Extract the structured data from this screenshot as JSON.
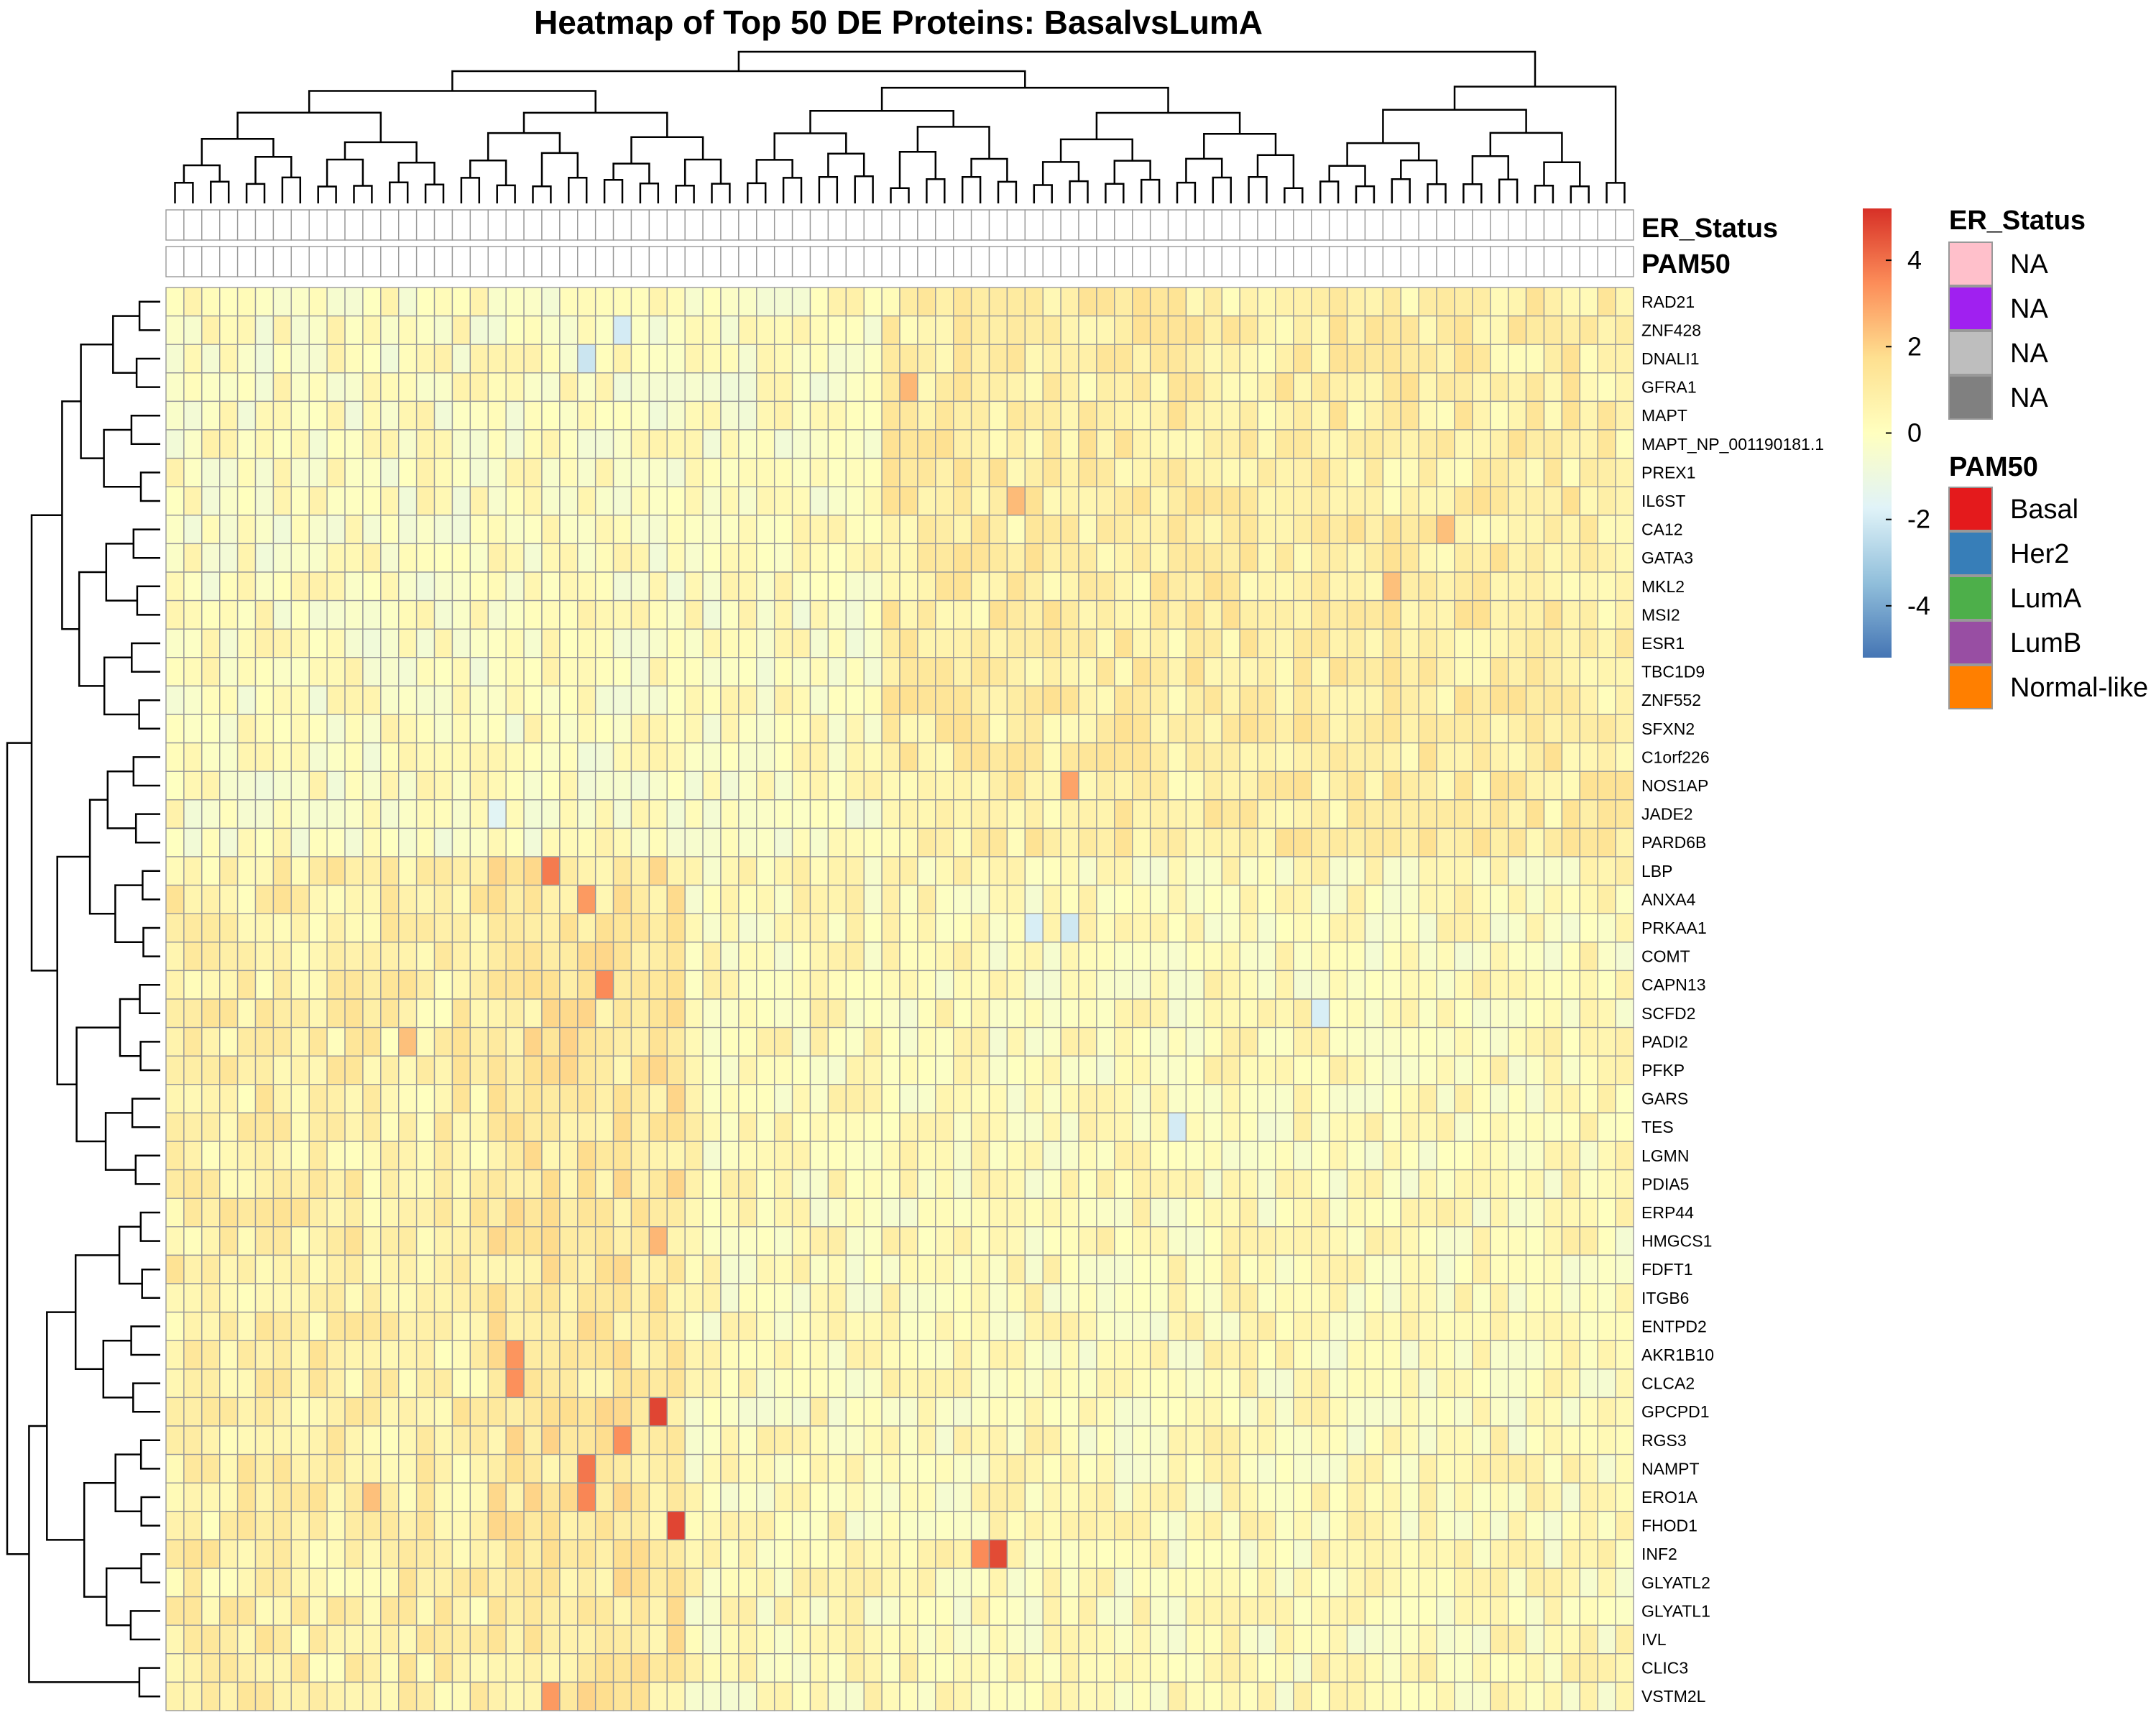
{
  "chart_data": {
    "type": "heatmap",
    "title": "Heatmap of Top 50 DE Proteins: BasalvsLumA",
    "n_columns": 82,
    "rows": [
      "RAD21",
      "ZNF428",
      "DNALI1",
      "GFRA1",
      "MAPT",
      "MAPT_NP_001190181.1",
      "PREX1",
      "IL6ST",
      "CA12",
      "GATA3",
      "MKL2",
      "MSI2",
      "ESR1",
      "TBC1D9",
      "ZNF552",
      "SFXN2",
      "C1orf226",
      "NOS1AP",
      "JADE2",
      "PARD6B",
      "LBP",
      "ANXA4",
      "PRKAA1",
      "COMT",
      "CAPN13",
      "SCFD2",
      "PADI2",
      "PFKP",
      "GARS",
      "TES",
      "LGMN",
      "PDIA5",
      "ERP44",
      "HMGCS1",
      "FDFT1",
      "ITGB6",
      "ENTPD2",
      "AKR1B10",
      "CLCA2",
      "GPCPD1",
      "RGS3",
      "NAMPT",
      "ERO1A",
      "FHOD1",
      "INF2",
      "GLYATL2",
      "GLYATL1",
      "IVL",
      "CLIC3",
      "VSTM2L"
    ],
    "annotation_rows": [
      "ER_Status",
      "PAM50"
    ],
    "color_scale": {
      "colors": [
        "#4575b4",
        "#91bfdb",
        "#e0f3f8",
        "#ffffbf",
        "#fee090",
        "#fc8d59",
        "#d73027"
      ],
      "min": -5.2,
      "max": 5.2,
      "ticks": [
        "4",
        "2",
        "0",
        "-2",
        "-4"
      ]
    },
    "na_color": "#ffffff",
    "grid_color": "#999999",
    "hotspots": [
      {
        "row": "LBP",
        "col": 21,
        "value": 3.8
      },
      {
        "row": "ANXA4",
        "col": 23,
        "value": 3.2
      },
      {
        "row": "CAPN13",
        "col": 24,
        "value": 3.5
      },
      {
        "row": "AKR1B10",
        "col": 19,
        "value": 3.3
      },
      {
        "row": "CLCA2",
        "col": 19,
        "value": 3.4
      },
      {
        "row": "GPCPD1",
        "col": 27,
        "value": 4.8
      },
      {
        "row": "RGS3",
        "col": 25,
        "value": 3.4
      },
      {
        "row": "NAMPT",
        "col": 23,
        "value": 3.9
      },
      {
        "row": "ERO1A",
        "col": 23,
        "value": 3.6
      },
      {
        "row": "FHOD1",
        "col": 28,
        "value": 4.8
      },
      {
        "row": "INF2",
        "col": 46,
        "value": 4.7
      },
      {
        "row": "INF2",
        "col": 45,
        "value": 3.5
      },
      {
        "row": "VSTM2L",
        "col": 21,
        "value": 3.2
      },
      {
        "row": "NOS1AP",
        "col": 50,
        "value": 3.0
      },
      {
        "row": "GFRA1",
        "col": 41,
        "value": 2.6
      },
      {
        "row": "IL6ST",
        "col": 47,
        "value": 2.5
      },
      {
        "row": "CA12",
        "col": 71,
        "value": 2.4
      },
      {
        "row": "MKL2",
        "col": 68,
        "value": 2.4
      },
      {
        "row": "HMGCS1",
        "col": 27,
        "value": 2.6
      },
      {
        "row": "PADI2",
        "col": 13,
        "value": 2.4
      },
      {
        "row": "ERO1A",
        "col": 11,
        "value": 2.4
      },
      {
        "row": "ZNF428",
        "col": 25,
        "value": -2.0
      },
      {
        "row": "DNALI1",
        "col": 23,
        "value": -2.2
      },
      {
        "row": "PRKAA1",
        "col": 50,
        "value": -2.1
      },
      {
        "row": "PRKAA1",
        "col": 48,
        "value": -1.9
      },
      {
        "row": "TES",
        "col": 56,
        "value": -2.0
      },
      {
        "row": "SCFD2",
        "col": 64,
        "value": -1.9
      },
      {
        "row": "JADE2",
        "col": 18,
        "value": -1.6
      }
    ]
  },
  "er_status_legend": {
    "title": "ER_Status",
    "entries": [
      {
        "label": "NA",
        "color": "#ffc0cb"
      },
      {
        "label": "NA",
        "color": "#a020f0"
      },
      {
        "label": "NA",
        "color": "#bebebe"
      },
      {
        "label": "NA",
        "color": "#808080"
      }
    ]
  },
  "pam50_legend": {
    "title": "PAM50",
    "entries": [
      {
        "label": "Basal",
        "color": "#e41a1c"
      },
      {
        "label": "Her2",
        "color": "#377eb8"
      },
      {
        "label": "LumA",
        "color": "#4daf4a"
      },
      {
        "label": "LumB",
        "color": "#984ea3"
      },
      {
        "label": "Normal-like",
        "color": "#ff7f00"
      }
    ]
  }
}
